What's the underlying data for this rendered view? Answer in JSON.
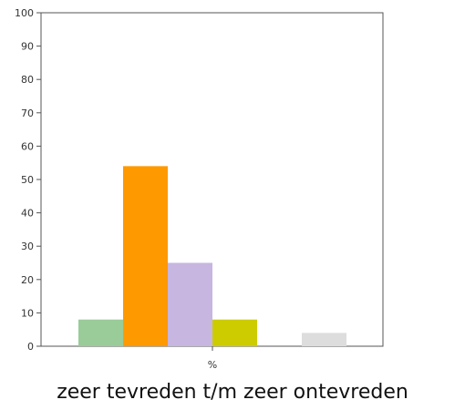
{
  "chart_data": {
    "type": "bar",
    "categories": [
      "%"
    ],
    "series": [
      {
        "values": [
          8
        ],
        "color": "#99cc99"
      },
      {
        "values": [
          54
        ],
        "color": "#ff9900"
      },
      {
        "values": [
          25
        ],
        "color": "#c6b6e0"
      },
      {
        "values": [
          8
        ],
        "color": "#cccc00"
      },
      {
        "values": [
          0
        ],
        "color": "#cccccc"
      },
      {
        "values": [
          4
        ],
        "color": "#dddddd"
      }
    ],
    "ylim": [
      0,
      100
    ],
    "yticks": [
      0,
      10,
      20,
      30,
      40,
      50,
      60,
      70,
      80,
      90,
      100
    ],
    "grid": false,
    "caption": "zeer tevreden t/m zeer ontevreden"
  }
}
